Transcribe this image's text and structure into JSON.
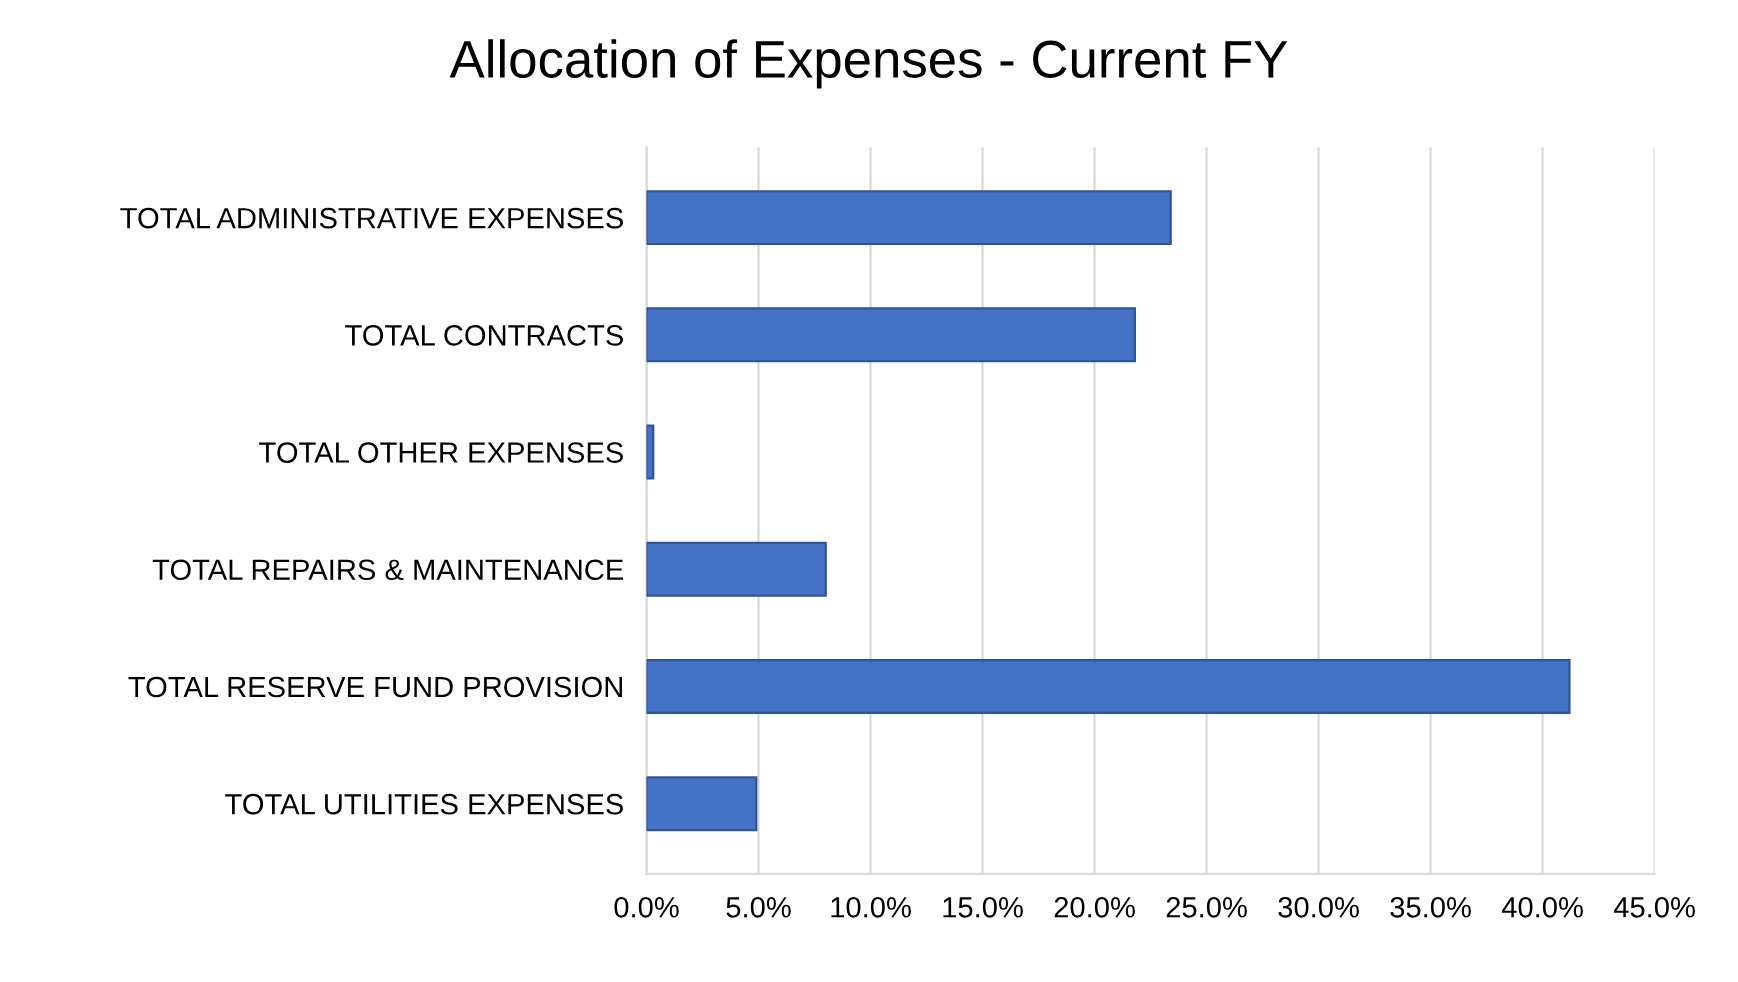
{
  "chart_data": {
    "type": "bar",
    "orientation": "horizontal",
    "title": "Allocation of Expenses - Current FY",
    "categories": [
      "TOTAL ADMINISTRATIVE EXPENSES",
      "TOTAL CONTRACTS",
      "TOTAL OTHER EXPENSES",
      "TOTAL REPAIRS & MAINTENANCE",
      "TOTAL RESERVE FUND PROVISION",
      "TOTAL UTILITIES EXPENSES"
    ],
    "values": [
      23.4,
      21.8,
      0.3,
      8.0,
      41.2,
      4.9
    ],
    "color": "#4472c4",
    "xlim": [
      0,
      45
    ],
    "xticks": [
      {
        "value": 0,
        "label": "0.0%"
      },
      {
        "value": 5,
        "label": "5.0%"
      },
      {
        "value": 10,
        "label": "10.0%"
      },
      {
        "value": 15,
        "label": "15.0%"
      },
      {
        "value": 20,
        "label": "20.0%"
      },
      {
        "value": 25,
        "label": "25.0%"
      },
      {
        "value": 30,
        "label": "30.0%"
      },
      {
        "value": 35,
        "label": "35.0%"
      },
      {
        "value": 40,
        "label": "40.0%"
      },
      {
        "value": 45,
        "label": "45.0%"
      }
    ],
    "grid": "x",
    "legend": false
  }
}
